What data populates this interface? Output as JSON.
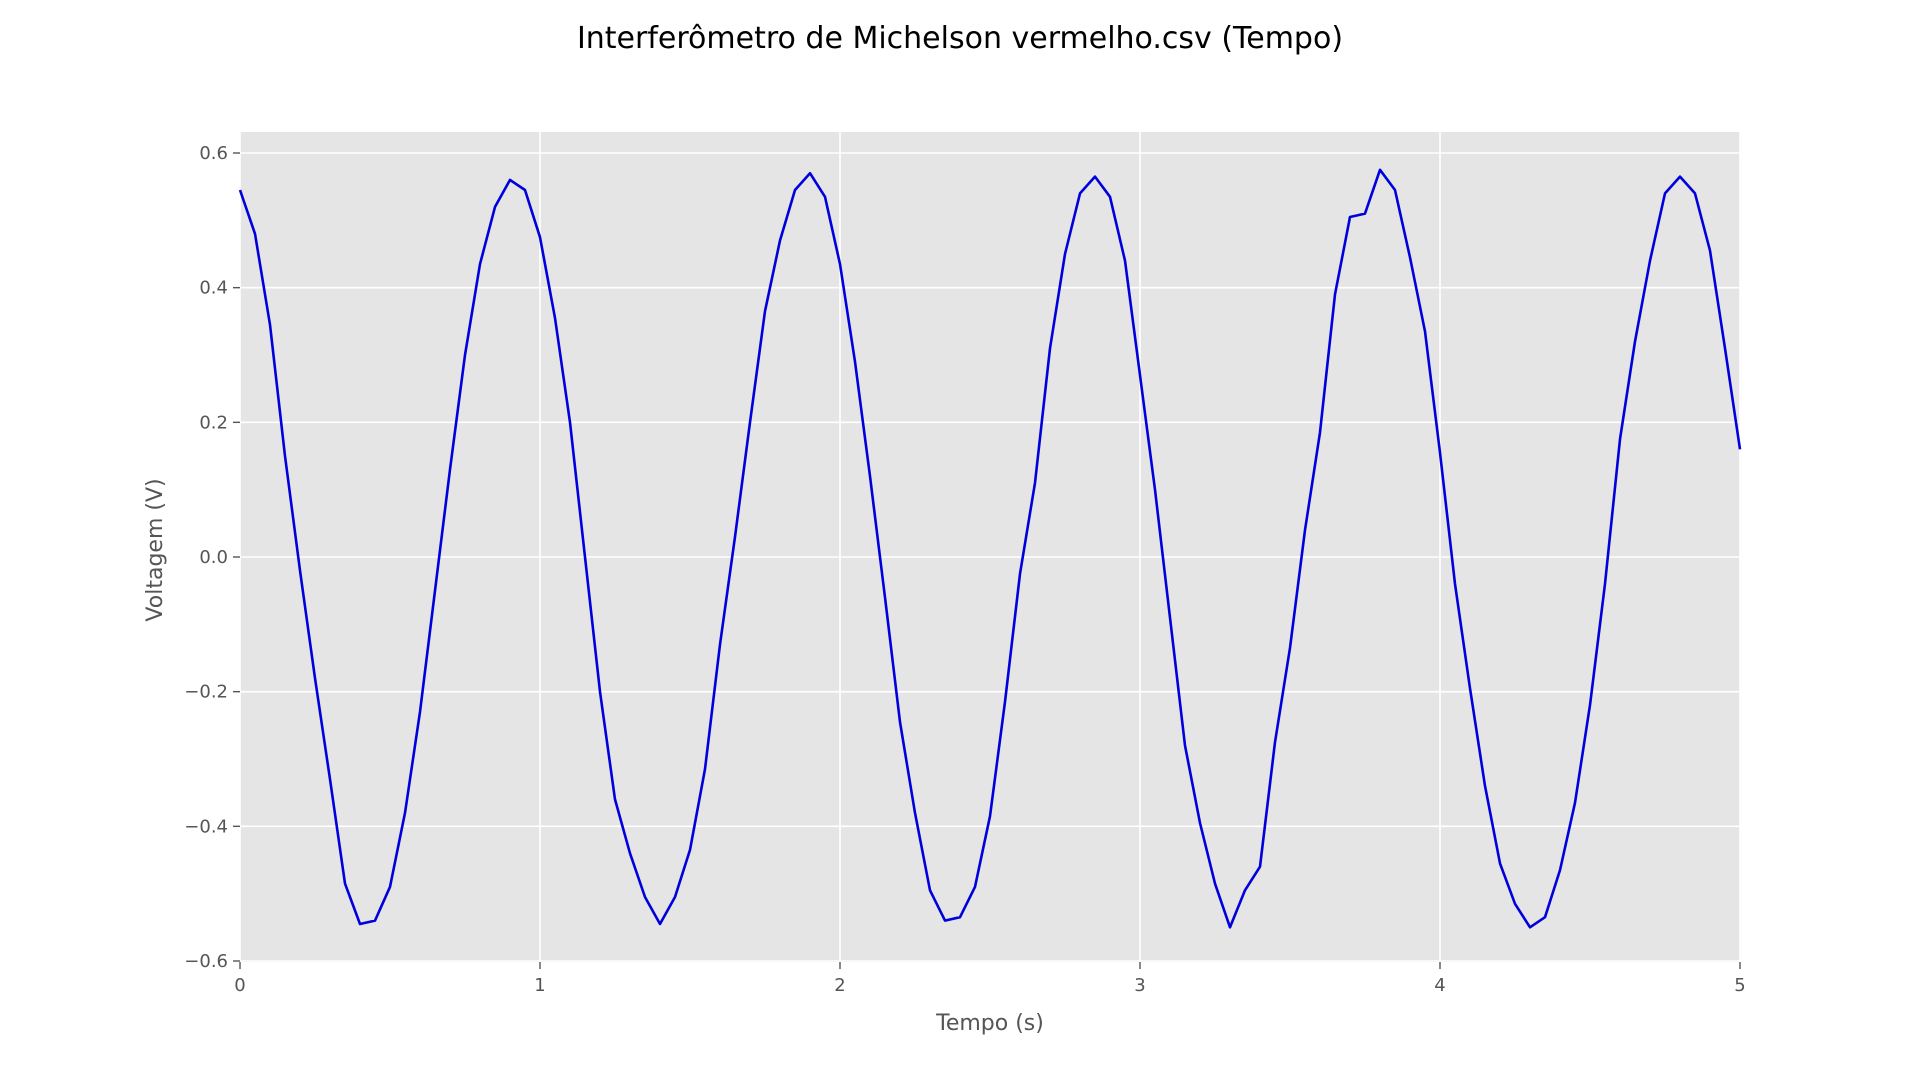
{
  "chart_data": {
    "type": "line",
    "title": "Interferômetro de Michelson vermelho.csv (Tempo)",
    "xlabel": "Tempo (s)",
    "ylabel": "Voltagem (V)",
    "xlim": [
      0,
      5
    ],
    "ylim": [
      -0.6,
      0.6
    ],
    "x_ticks": [
      0,
      1,
      2,
      3,
      4,
      5
    ],
    "x_tick_labels": [
      "0",
      "1",
      "2",
      "3",
      "4",
      "5"
    ],
    "y_ticks": [
      -0.6,
      -0.4,
      -0.2,
      0.0,
      0.2,
      0.4,
      0.6
    ],
    "y_tick_labels": [
      "−0.6",
      "−0.4",
      "−0.2",
      "0.0",
      "0.2",
      "0.4",
      "0.6"
    ],
    "grid": true,
    "colors": {
      "background": "#e5e5e5",
      "grid": "#ffffff",
      "line": "#0000dd"
    },
    "series": [
      {
        "x": [
          0,
          0.05,
          0.1,
          0.15,
          0.2,
          0.25,
          0.3,
          0.35,
          0.4,
          0.45,
          0.5,
          0.55,
          0.6,
          0.65,
          0.7,
          0.75,
          0.8,
          0.85,
          0.9,
          0.95,
          1.0,
          1.05,
          1.1,
          1.15,
          1.2,
          1.25,
          1.3,
          1.35,
          1.4,
          1.45,
          1.5,
          1.55,
          1.6,
          1.65,
          1.7,
          1.75,
          1.8,
          1.85,
          1.9,
          1.95,
          2.0,
          2.05,
          2.1,
          2.15,
          2.2,
          2.25,
          2.3,
          2.35,
          2.4,
          2.45,
          2.5,
          2.55,
          2.6,
          2.65,
          2.7,
          2.75,
          2.8,
          2.85,
          2.9,
          2.95,
          3.0,
          3.05,
          3.1,
          3.15,
          3.2,
          3.25,
          3.3,
          3.35,
          3.4,
          3.45,
          3.5,
          3.55,
          3.6,
          3.65,
          3.7,
          3.75,
          3.8,
          3.85,
          3.9,
          3.95,
          4.0,
          4.05,
          4.1,
          4.15,
          4.2,
          4.25,
          4.3,
          4.35,
          4.4,
          4.45,
          4.5,
          4.55,
          4.6,
          4.65,
          4.7,
          4.75,
          4.8,
          4.85,
          4.9,
          4.95,
          5.0
        ],
        "y": [
          0.545,
          0.48,
          0.345,
          0.15,
          -0.02,
          -0.18,
          -0.33,
          -0.485,
          -0.545,
          -0.54,
          -0.49,
          -0.38,
          -0.23,
          -0.05,
          0.13,
          0.3,
          0.435,
          0.52,
          0.56,
          0.545,
          0.475,
          0.355,
          0.2,
          0.0,
          -0.2,
          -0.36,
          -0.44,
          -0.505,
          -0.545,
          -0.505,
          -0.435,
          -0.315,
          -0.13,
          0.03,
          0.2,
          0.365,
          0.47,
          0.545,
          0.57,
          0.535,
          0.435,
          0.29,
          0.12,
          -0.06,
          -0.245,
          -0.38,
          -0.495,
          -0.54,
          -0.535,
          -0.49,
          -0.385,
          -0.215,
          -0.025,
          0.11,
          0.31,
          0.45,
          0.54,
          0.565,
          0.535,
          0.44,
          0.27,
          0.1,
          -0.09,
          -0.28,
          -0.395,
          -0.485,
          -0.55,
          -0.495,
          -0.46,
          -0.275,
          -0.135,
          0.04,
          0.185,
          0.39,
          0.505,
          0.51,
          0.575,
          0.545,
          0.445,
          0.335,
          0.155,
          -0.04,
          -0.195,
          -0.34,
          -0.455,
          -0.515,
          -0.55,
          -0.535,
          -0.465,
          -0.365,
          -0.22,
          -0.04,
          0.175,
          0.32,
          0.44,
          0.54,
          0.565,
          0.54,
          0.455,
          0.31,
          0.16
        ]
      }
    ]
  }
}
